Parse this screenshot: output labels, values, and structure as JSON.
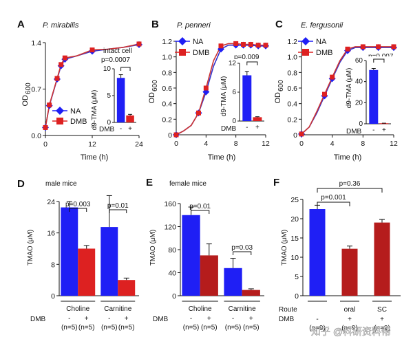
{
  "colors": {
    "blue": "#1f1ff5",
    "red": "#dd2121",
    "dark_red": "#b51c1c",
    "curve_blue": "#3333cc",
    "curve_red": "#cc3333"
  },
  "legend": {
    "na": "NA",
    "dmb": "DMB"
  },
  "watermark": "知乎 @科研资料帮",
  "chart_data": [
    {
      "panel": "A",
      "type": "line",
      "title": "P. mirabilis",
      "xlabel": "Time (h)",
      "ylabel_main": "OD",
      "ylabel_sub": "600",
      "xlim": [
        0,
        24
      ],
      "ylim": [
        0,
        1.4
      ],
      "xticks": [
        0,
        12,
        24
      ],
      "yticks": [
        0.0,
        0.7,
        1.4
      ],
      "ytick_labels": [
        "0.0",
        "0.7",
        "1.4"
      ],
      "series": [
        {
          "name": "NA",
          "x": [
            0,
            1,
            3,
            4,
            5,
            8,
            12,
            16,
            20,
            24
          ],
          "y": [
            0.12,
            0.45,
            0.85,
            1.05,
            1.15,
            1.2,
            1.27,
            1.3,
            1.33,
            1.37
          ]
        },
        {
          "name": "DMB",
          "x": [
            0,
            1,
            3,
            4,
            5,
            8,
            12,
            16,
            20,
            24
          ],
          "y": [
            0.12,
            0.46,
            0.86,
            1.07,
            1.17,
            1.2,
            1.29,
            1.3,
            1.33,
            1.38
          ]
        }
      ],
      "inset": {
        "type": "bar",
        "label_top": "intact cell",
        "ylabel": "d9-TMA (μM)",
        "ylim": [
          0,
          10
        ],
        "yticks": [
          0,
          5,
          10
        ],
        "categories": [
          "-",
          "+"
        ],
        "values": [
          8.3,
          1.3
        ],
        "errors": [
          0.6,
          0.2
        ],
        "p_value": "p=0.0007",
        "xrow_label": "DMB"
      }
    },
    {
      "panel": "B",
      "type": "line",
      "title": "P. penneri",
      "xlabel": "Time (h)",
      "ylabel_main": "OD",
      "ylabel_sub": "600",
      "xlim": [
        0,
        12
      ],
      "ylim": [
        0,
        1.2
      ],
      "xticks": [
        0,
        4,
        8,
        12
      ],
      "yticks": [
        0,
        0.2,
        0.4,
        0.6,
        0.8,
        1.0,
        1.2
      ],
      "ytick_labels": [
        "0",
        "0.2",
        "0.4",
        "0.6",
        "0.8",
        "1.0",
        "1.2"
      ],
      "series": [
        {
          "name": "NA",
          "x": [
            0,
            1,
            2,
            3,
            4,
            5,
            6,
            7,
            8,
            9,
            10,
            11,
            12
          ],
          "y": [
            0.0,
            0.05,
            0.12,
            0.28,
            0.55,
            0.88,
            1.1,
            1.15,
            1.15,
            1.15,
            1.15,
            1.14,
            1.14
          ]
        },
        {
          "name": "DMB",
          "x": [
            0,
            1,
            2,
            3,
            4,
            5,
            6,
            7,
            8,
            9,
            10,
            11,
            12
          ],
          "y": [
            0.0,
            0.05,
            0.12,
            0.28,
            0.6,
            0.95,
            1.14,
            1.17,
            1.17,
            1.16,
            1.16,
            1.15,
            1.15
          ]
        }
      ],
      "inset": {
        "type": "bar",
        "ylabel": "d9-TMA (μM)",
        "ylim": [
          0,
          12
        ],
        "yticks": [
          0,
          6,
          12
        ],
        "categories": [
          "-",
          "+"
        ],
        "values": [
          9.5,
          0.8
        ],
        "errors": [
          0.8,
          0.1
        ],
        "p_value": "p=0.009",
        "xrow_label": "DMB"
      }
    },
    {
      "panel": "C",
      "type": "line",
      "title": "E. fergusonii",
      "xlabel": "Time (h)",
      "ylabel_main": "OD",
      "ylabel_sub": "600",
      "xlim": [
        0,
        12
      ],
      "ylim": [
        0,
        1.2
      ],
      "xticks": [
        0,
        4,
        8,
        12
      ],
      "yticks": [
        0,
        0.2,
        0.4,
        0.6,
        0.8,
        1.0,
        1.2
      ],
      "ytick_labels": [
        "0",
        "0.2",
        "0.4",
        "0.6",
        "0.8",
        "1.0",
        "1.2"
      ],
      "series": [
        {
          "name": "NA",
          "x": [
            0,
            1,
            2,
            3,
            4,
            5,
            6,
            7,
            8,
            9,
            10,
            11,
            12
          ],
          "y": [
            0.01,
            0.1,
            0.28,
            0.5,
            0.72,
            0.93,
            1.08,
            1.12,
            1.12,
            1.12,
            1.12,
            1.12,
            1.12
          ]
        },
        {
          "name": "DMB",
          "x": [
            0,
            1,
            2,
            3,
            4,
            5,
            6,
            7,
            8,
            9,
            10,
            11,
            12
          ],
          "y": [
            0.01,
            0.1,
            0.3,
            0.52,
            0.74,
            0.95,
            1.1,
            1.13,
            1.13,
            1.13,
            1.13,
            1.13,
            1.13
          ]
        }
      ],
      "inset": {
        "type": "bar",
        "ylabel": "d9-TMA (μM)",
        "ylim": [
          0,
          60
        ],
        "yticks": [
          0,
          20,
          40,
          60
        ],
        "categories": [
          "-",
          "+"
        ],
        "values": [
          51,
          0.5
        ],
        "errors": [
          1.5,
          0.1
        ],
        "p_value": "p=0.007",
        "xrow_label": "DMB"
      }
    },
    {
      "panel": "D",
      "type": "bar",
      "title": "male mice",
      "ylabel": "TMAO (μM)",
      "ylim": [
        0,
        24
      ],
      "yticks": [
        0,
        8,
        16,
        24
      ],
      "groups": [
        "Choline",
        "Carnitine"
      ],
      "bars": [
        {
          "group": "Choline",
          "dmb": "-",
          "n": "(n=5)",
          "value": 22.5,
          "error": 1.5,
          "color": "blue"
        },
        {
          "group": "Choline",
          "dmb": "+",
          "n": "(n=5)",
          "value": 12.0,
          "error": 0.8,
          "color": "red"
        },
        {
          "group": "Carnitine",
          "dmb": "-",
          "n": "(n=5)",
          "value": 17.5,
          "error": 8.0,
          "color": "blue"
        },
        {
          "group": "Carnitine",
          "dmb": "+",
          "n": "(n=5)",
          "value": 4.0,
          "error": 0.5,
          "color": "red"
        }
      ],
      "p_values": [
        "p=0.003",
        "p=0.01"
      ],
      "xrow_label": "DMB"
    },
    {
      "panel": "E",
      "type": "bar",
      "title": "female mice",
      "ylabel": "TMAO (μM)",
      "ylim": [
        0,
        160
      ],
      "yticks": [
        0,
        40,
        80,
        120,
        160
      ],
      "groups": [
        "Choline",
        "Carnitine"
      ],
      "bars": [
        {
          "group": "Choline",
          "dmb": "-",
          "n": "(n=5)",
          "value": 140,
          "error": 14,
          "color": "blue"
        },
        {
          "group": "Choline",
          "dmb": "+",
          "n": "(n=5)",
          "value": 70,
          "error": 20,
          "color": "dark_red"
        },
        {
          "group": "Carnitine",
          "dmb": "-",
          "n": "(n=5)",
          "value": 48,
          "error": 17,
          "color": "blue"
        },
        {
          "group": "Carnitine",
          "dmb": "+",
          "n": "(n=5)",
          "value": 10,
          "error": 2,
          "color": "dark_red"
        }
      ],
      "p_values": [
        "p=0.01",
        "p=0.03"
      ],
      "xrow_label": "DMB"
    },
    {
      "panel": "F",
      "type": "bar",
      "ylabel": "TMAO (μM)",
      "ylim": [
        0,
        25
      ],
      "yticks": [
        0,
        5,
        10,
        15,
        20,
        25
      ],
      "route_label": "Route",
      "bars": [
        {
          "route": "",
          "dmb": "-",
          "n": "(n=9)",
          "value": 22.5,
          "error": 1.0,
          "color": "blue"
        },
        {
          "route": "oral",
          "dmb": "+",
          "n": "(n=9)",
          "value": 12.2,
          "error": 0.7,
          "color": "dark_red"
        },
        {
          "route": "SC",
          "dmb": "+",
          "n": "(n=9)",
          "value": 19.0,
          "error": 0.8,
          "color": "dark_red"
        }
      ],
      "p_values": [
        "p=0.001",
        "p=0.36"
      ],
      "xrow_label": "DMB"
    }
  ]
}
